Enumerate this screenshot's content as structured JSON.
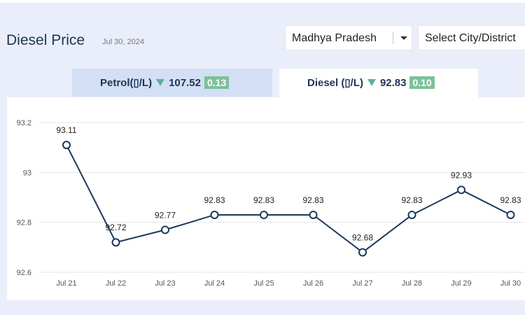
{
  "header": {
    "title": "Diesel Price",
    "date": "Jul 30, 2024",
    "state_select": "Madhya Pradesh",
    "city_select": "Select City/District"
  },
  "tabs": {
    "petrol": {
      "label": "Petrol(▯/L)",
      "price": "107.52",
      "change": "0.13"
    },
    "diesel": {
      "label": "Diesel (▯/L)",
      "price": "92.83",
      "change": "0.10"
    }
  },
  "colors": {
    "line": "#1b3a5c",
    "badge": "#7cc199",
    "down_arrow": "#5fb09a",
    "active_tab": "#ffffff",
    "inactive_tab": "#d3dff4"
  },
  "chart_data": {
    "type": "line",
    "categories": [
      "Jul 21",
      "Jul 22",
      "Jul 23",
      "Jul 24",
      "Jul 25",
      "Jul 26",
      "Jul 27",
      "Jul 28",
      "Jul 29",
      "Jul 30"
    ],
    "values": [
      93.11,
      92.72,
      92.77,
      92.83,
      92.83,
      92.83,
      92.68,
      92.83,
      92.93,
      92.83
    ],
    "data_labels": [
      "93.11",
      "92.72",
      "92.77",
      "92.83",
      "92.83",
      "92.83",
      "92.68",
      "92.83",
      "92.93",
      "92.83"
    ],
    "yticks": [
      "92.6",
      "92.8",
      "93",
      "93.2"
    ],
    "ylim": [
      92.6,
      93.2
    ],
    "grid": true
  }
}
